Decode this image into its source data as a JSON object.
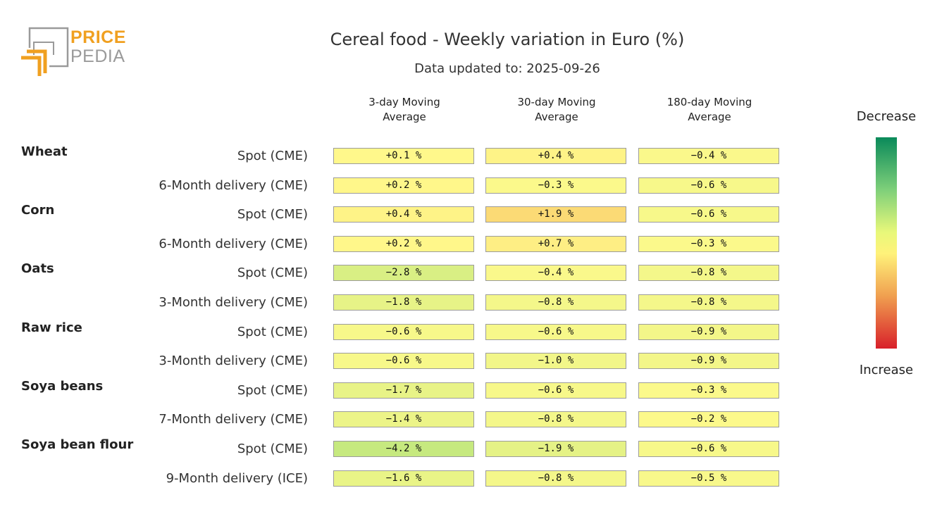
{
  "logo": {
    "line1": "PRICE",
    "line2": "PEDIA"
  },
  "title": "Cereal food - Weekly variation in Euro (%)",
  "subtitle": "Data updated to: 2025-09-26",
  "legend": {
    "top": "Decrease",
    "bottom": "Increase"
  },
  "colors": {
    "accent_orange": "#f0a020",
    "logo_gray": "#9a9a9a",
    "decrease": "#0a8a5a",
    "neutral": "#fff27a",
    "increase": "#d8202a"
  },
  "chart_data": {
    "type": "heatmap",
    "title": "Cereal food - Weekly variation in Euro (%)",
    "subtitle": "Data updated to: 2025-09-26",
    "columns": [
      "3-day Moving Average",
      "30-day Moving Average",
      "180-day Moving Average"
    ],
    "unit": "%",
    "legend": {
      "top": "Decrease",
      "bottom": "Increase",
      "placement": "right"
    },
    "groups": [
      {
        "name": "Wheat",
        "rows": [
          {
            "label": "Spot (CME)",
            "values": [
              0.1,
              0.4,
              -0.4
            ]
          },
          {
            "label": "6-Month delivery (CME)",
            "values": [
              0.2,
              -0.3,
              -0.6
            ]
          }
        ]
      },
      {
        "name": "Corn",
        "rows": [
          {
            "label": "Spot (CME)",
            "values": [
              0.4,
              1.9,
              -0.6
            ]
          },
          {
            "label": "6-Month delivery (CME)",
            "values": [
              0.2,
              0.7,
              -0.3
            ]
          }
        ]
      },
      {
        "name": "Oats",
        "rows": [
          {
            "label": "Spot (CME)",
            "values": [
              -2.8,
              -0.4,
              -0.8
            ]
          },
          {
            "label": "3-Month delivery (CME)",
            "values": [
              -1.8,
              -0.8,
              -0.8
            ]
          }
        ]
      },
      {
        "name": "Raw rice",
        "rows": [
          {
            "label": "Spot (CME)",
            "values": [
              -0.6,
              -0.6,
              -0.9
            ]
          },
          {
            "label": "3-Month delivery (CME)",
            "values": [
              -0.6,
              -1.0,
              -0.9
            ]
          }
        ]
      },
      {
        "name": "Soya beans",
        "rows": [
          {
            "label": "Spot (CME)",
            "values": [
              -1.7,
              -0.6,
              -0.3
            ]
          },
          {
            "label": "7-Month delivery (CME)",
            "values": [
              -1.4,
              -0.8,
              -0.2
            ]
          }
        ]
      },
      {
        "name": "Soya bean flour",
        "rows": [
          {
            "label": "Spot (CME)",
            "values": [
              -4.2,
              -1.9,
              -0.6
            ]
          },
          {
            "label": "9-Month delivery (ICE)",
            "values": [
              -1.6,
              -0.8,
              -0.5
            ]
          }
        ]
      }
    ]
  }
}
